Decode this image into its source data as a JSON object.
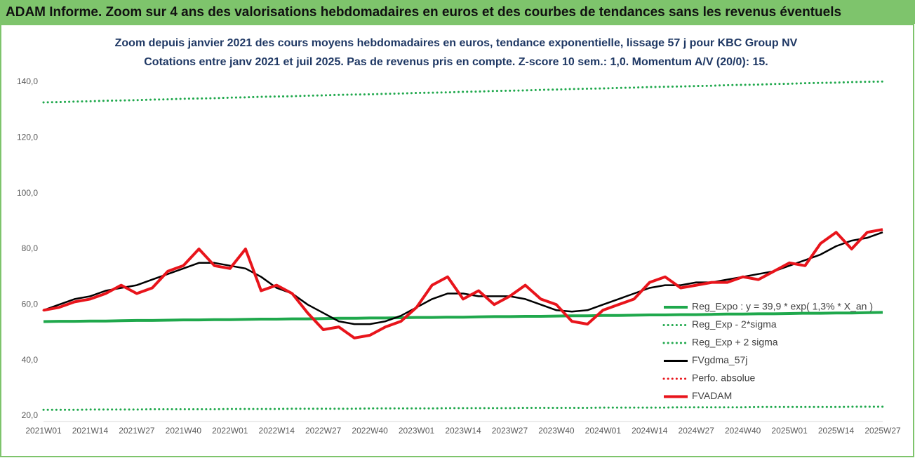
{
  "header": "ADAM Informe. Zoom sur 4 ans des valorisations hebdomadaires en euros et des courbes de tendances sans les revenus éventuels",
  "chart_data": {
    "type": "line",
    "title": "Zoom depuis janvier 2021 des cours moyens hebdomadaires en euros, tendance exponentielle, lissage 57 j pour KBC Group NV",
    "subtitle": "Cotations entre janv 2021 et juil 2025. Pas de revenus pris en compte. Z-score 10 sem.: 1,0. Momentum A/V (20/0): 15.",
    "categories": [
      "2021W01",
      null,
      null,
      "2021W14",
      null,
      null,
      "2021W27",
      null,
      null,
      "2021W40",
      null,
      null,
      "2022W01",
      null,
      null,
      "2022W14",
      null,
      null,
      "2022W27",
      null,
      null,
      "2022W40",
      null,
      null,
      "2023W01",
      null,
      null,
      "2023W14",
      null,
      null,
      "2023W27",
      null,
      null,
      "2023W40",
      null,
      null,
      "2024W01",
      null,
      null,
      "2024W14",
      null,
      null,
      "2024W27",
      null,
      null,
      "2024W40",
      null,
      null,
      "2025W01",
      null,
      null,
      "2025W14",
      null,
      null,
      "2025W27"
    ],
    "ylim": [
      20,
      140
    ],
    "yticks": [
      {
        "value": 20,
        "label": "20,0"
      },
      {
        "value": 40,
        "label": "40,0"
      },
      {
        "value": 60,
        "label": "60,0"
      },
      {
        "value": 80,
        "label": "80,0"
      },
      {
        "value": 100,
        "label": "100,0"
      },
      {
        "value": 120,
        "label": "120,0"
      },
      {
        "value": 140,
        "label": "140,0"
      }
    ],
    "grid": false,
    "legend": "lower right",
    "series": [
      {
        "name": "Reg_Expo : y = 39,9 * exp( 1,3% *  X_an )",
        "color": "#1fa84c",
        "style": "solid",
        "values": [
          53.9,
          54.0,
          54.0,
          54.1,
          54.1,
          54.2,
          54.3,
          54.3,
          54.4,
          54.5,
          54.5,
          54.6,
          54.6,
          54.7,
          54.8,
          54.8,
          54.9,
          54.9,
          55.0,
          55.1,
          55.1,
          55.2,
          55.2,
          55.3,
          55.4,
          55.4,
          55.5,
          55.5,
          55.6,
          55.7,
          55.7,
          55.8,
          55.8,
          55.9,
          56.0,
          56.0,
          56.1,
          56.1,
          56.2,
          56.3,
          56.3,
          56.4,
          56.4,
          56.5,
          56.6,
          56.6,
          56.7,
          56.7,
          56.8,
          56.9,
          56.9,
          57.0,
          57.0,
          57.1,
          57.2
        ]
      },
      {
        "name": "Reg_Exp - 2*sigma",
        "color": "#1fa84c",
        "style": "dotted",
        "values": [
          22.2,
          22.2,
          22.2,
          22.3,
          22.3,
          22.3,
          22.3,
          22.4,
          22.4,
          22.4,
          22.4,
          22.4,
          22.5,
          22.5,
          22.5,
          22.5,
          22.6,
          22.6,
          22.6,
          22.6,
          22.6,
          22.7,
          22.7,
          22.7,
          22.7,
          22.7,
          22.8,
          22.8,
          22.8,
          22.8,
          22.8,
          22.9,
          22.9,
          22.9,
          22.9,
          22.9,
          23.0,
          23.0,
          23.0,
          23.0,
          23.0,
          23.1,
          23.1,
          23.1,
          23.1,
          23.1,
          23.2,
          23.2,
          23.2,
          23.2,
          23.2,
          23.2,
          23.3,
          23.3,
          23.3
        ]
      },
      {
        "name": "Reg_Exp + 2 sigma",
        "color": "#1fa84c",
        "style": "dotted",
        "values": [
          132.7,
          132.8,
          133.0,
          133.1,
          133.3,
          133.4,
          133.5,
          133.7,
          133.8,
          134.0,
          134.1,
          134.2,
          134.4,
          134.5,
          134.7,
          134.8,
          134.9,
          135.1,
          135.2,
          135.4,
          135.5,
          135.6,
          135.8,
          135.9,
          136.1,
          136.2,
          136.3,
          136.5,
          136.6,
          136.8,
          136.9,
          137.0,
          137.2,
          137.3,
          137.5,
          137.6,
          137.7,
          137.9,
          138.0,
          138.2,
          138.3,
          138.4,
          138.6,
          138.7,
          138.9,
          139.0,
          139.1,
          139.3,
          139.4,
          139.6,
          139.7,
          139.8,
          140.0,
          140.1,
          140.2
        ]
      },
      {
        "name": "FVgdma_57j",
        "color": "#000000",
        "style": "solid",
        "values": [
          58,
          60,
          62,
          63,
          65,
          66,
          67,
          69,
          71,
          73,
          75,
          75,
          74,
          73,
          70,
          66,
          64,
          60,
          57,
          54,
          53,
          53,
          54,
          56,
          59,
          62,
          64,
          64,
          63,
          63,
          63,
          62,
          60,
          58,
          57.5,
          58,
          60,
          62,
          64,
          66,
          67,
          67,
          68,
          68,
          69,
          70,
          71,
          72,
          74,
          76,
          78,
          81,
          83,
          84,
          86
        ]
      },
      {
        "name": "Perfo. absolue",
        "color": "#e8141b",
        "style": "dotted",
        "values": [
          58,
          59,
          61,
          62,
          64,
          67,
          64,
          66,
          72,
          74,
          80,
          74,
          73,
          80,
          65,
          67,
          64,
          57,
          51,
          52,
          48,
          49,
          52,
          54,
          59,
          67,
          70,
          62,
          65,
          60,
          63,
          67,
          62,
          60,
          54,
          53,
          58,
          60,
          62,
          68,
          70,
          66,
          67,
          68,
          68,
          70,
          69,
          72,
          75,
          74,
          82,
          86,
          80,
          86,
          87
        ]
      },
      {
        "name": "FVADAM",
        "color": "#e8141b",
        "style": "solid",
        "values": [
          58,
          59,
          61,
          62,
          64,
          67,
          64,
          66,
          72,
          74,
          80,
          74,
          73,
          80,
          65,
          67,
          64,
          57,
          51,
          52,
          48,
          49,
          52,
          54,
          59,
          67,
          70,
          62,
          65,
          60,
          63,
          67,
          62,
          60,
          54,
          53,
          58,
          60,
          62,
          68,
          70,
          66,
          67,
          68,
          68,
          70,
          69,
          72,
          75,
          74,
          82,
          86,
          80,
          86,
          87
        ]
      }
    ]
  }
}
